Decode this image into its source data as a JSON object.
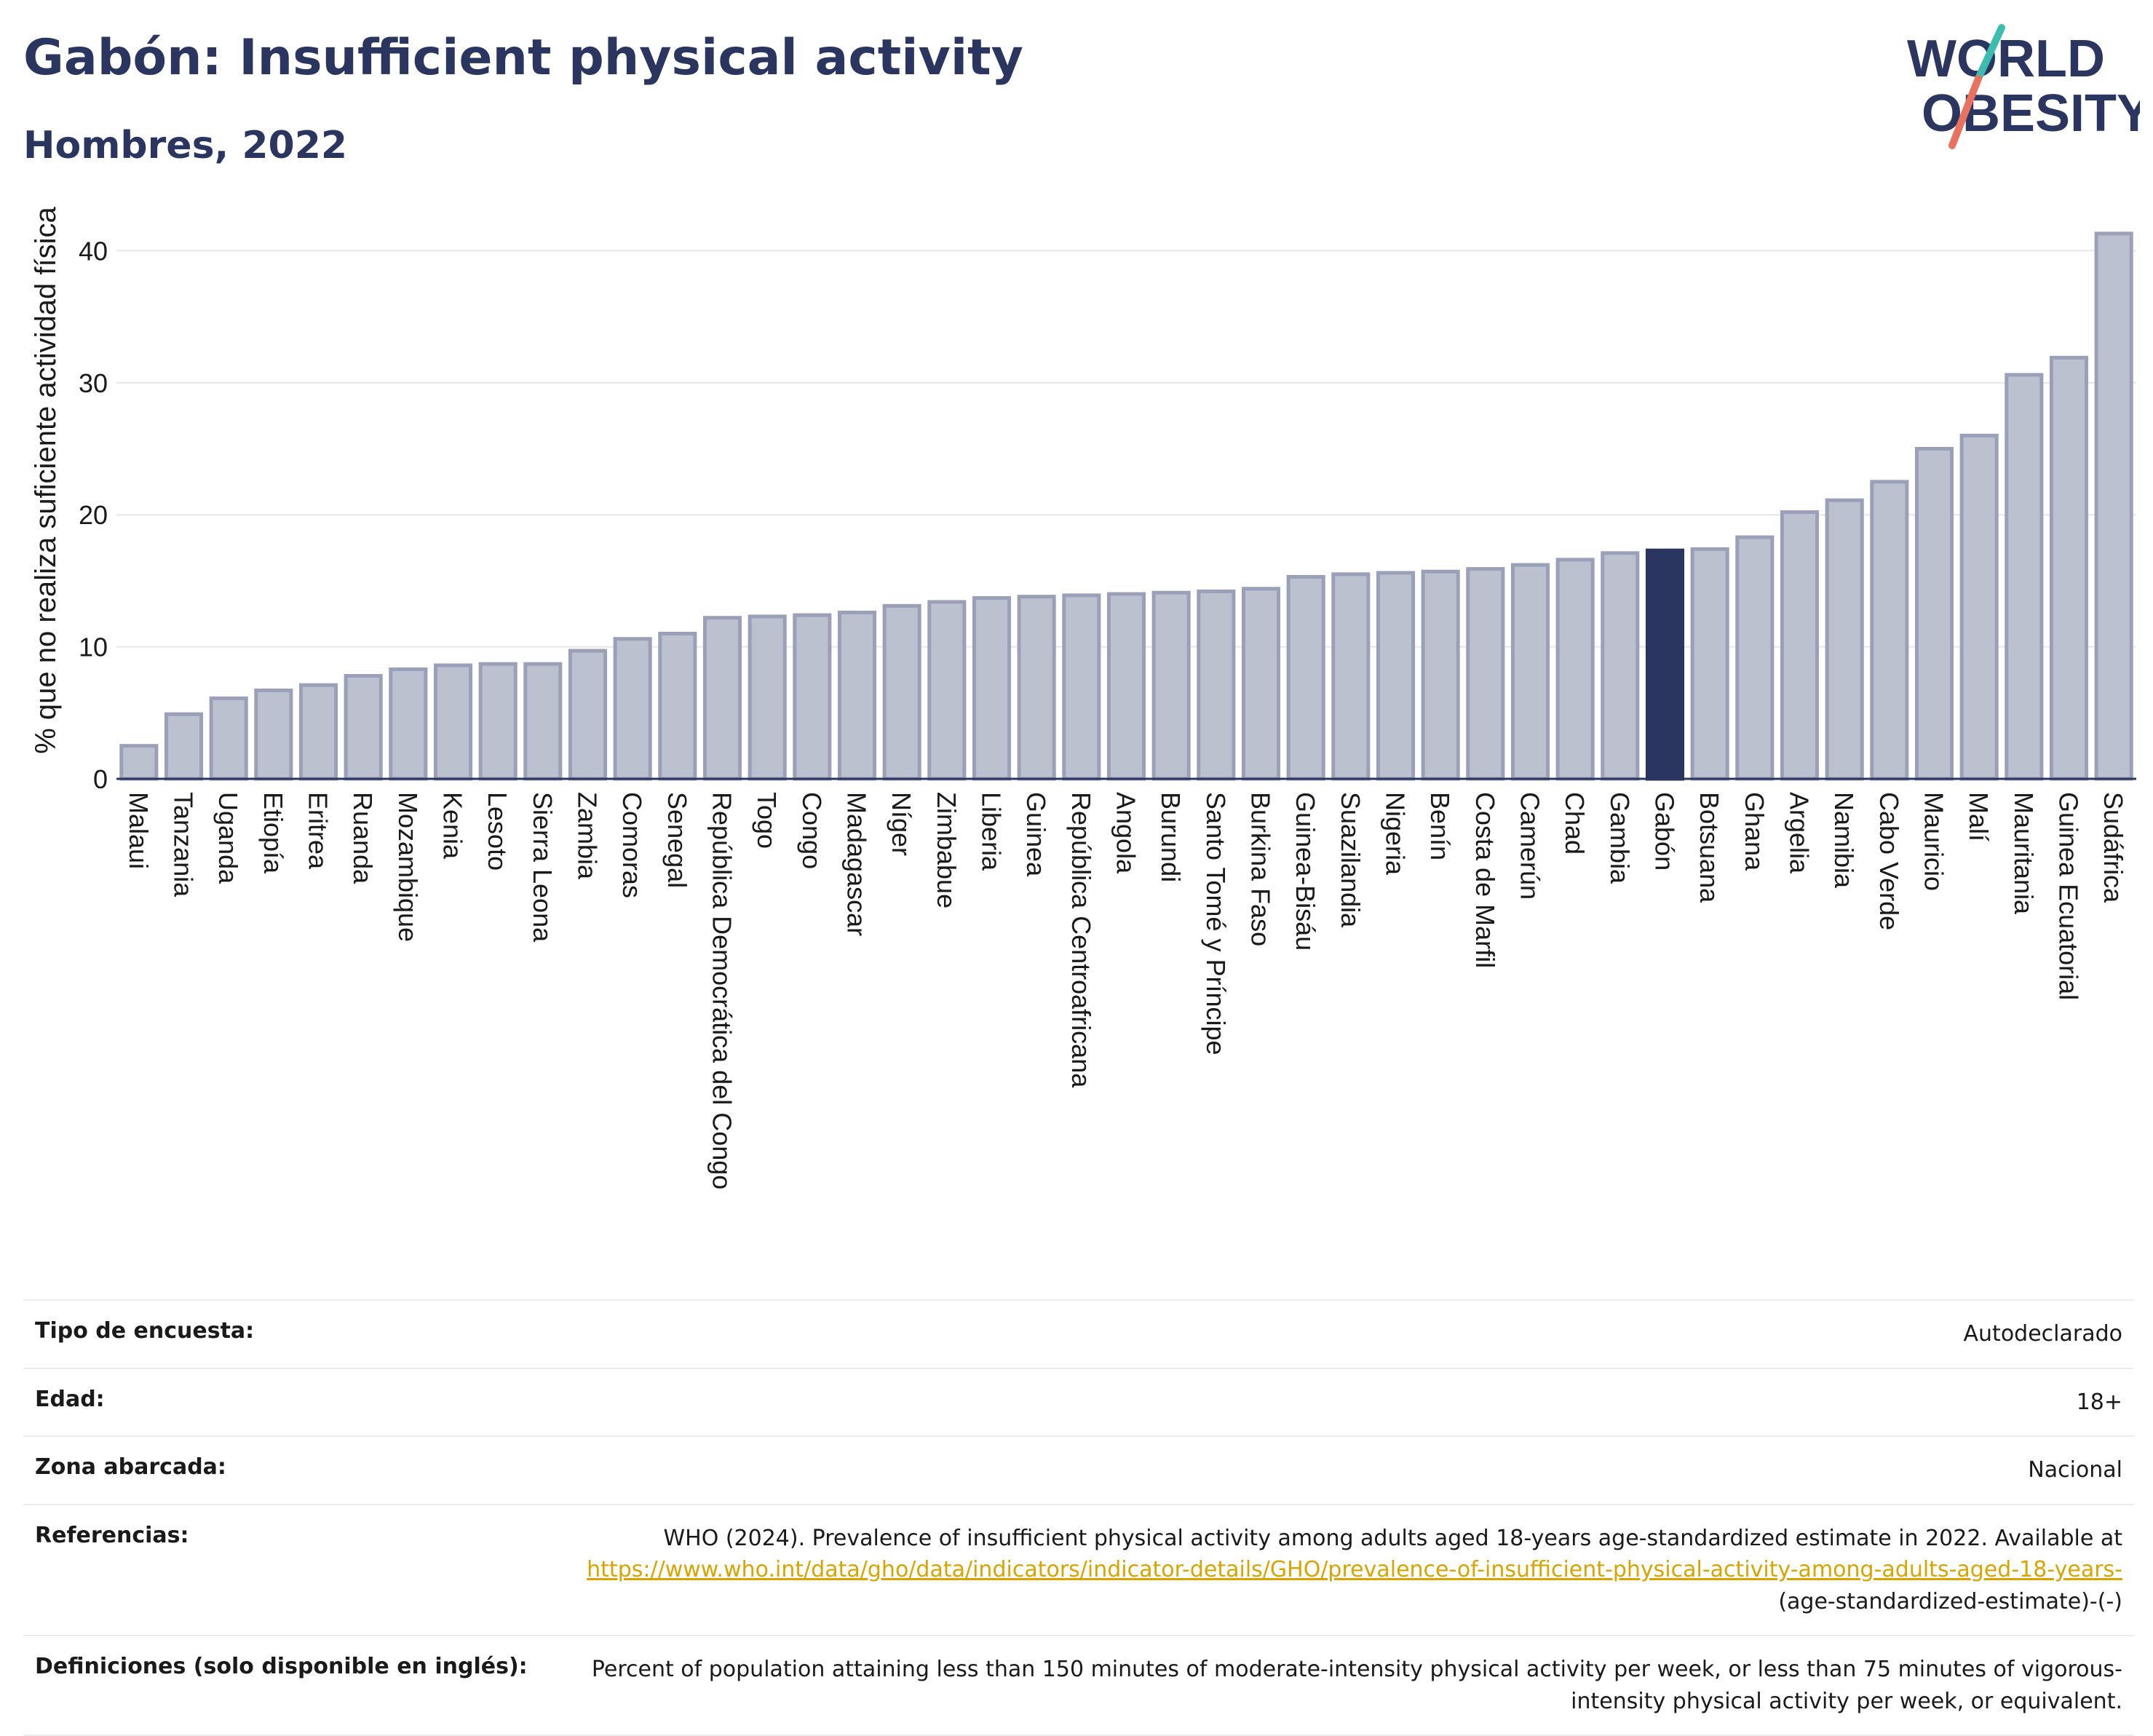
{
  "header": {
    "title": "Gabón: Insufficient physical activity",
    "subtitle": "Hombres, 2022",
    "logo_line1": "WORLD",
    "logo_line2": "OBESITY"
  },
  "colors": {
    "bar": "#bcc1d0",
    "bar_stroke": "#9aa0b8",
    "highlight": "#2b3660",
    "grid": "#e6e6e6",
    "link": "#d9a400",
    "logo_teal": "#3dbdb0",
    "logo_coral": "#e8725f"
  },
  "chart_data": {
    "type": "bar",
    "ylabel": "% que no realiza suficiente actividad física",
    "ylim": [
      0,
      43
    ],
    "yticks": [
      0,
      10,
      20,
      30,
      40
    ],
    "grid": true,
    "highlight": "Gabón",
    "categories": [
      "Malaui",
      "Tanzania",
      "Uganda",
      "Etiopía",
      "Eritrea",
      "Ruanda",
      "Mozambique",
      "Kenia",
      "Lesoto",
      "Sierra Leona",
      "Zambia",
      "Comoras",
      "Senegal",
      "República Democrática del Congo",
      "Togo",
      "Congo",
      "Madagascar",
      "Níger",
      "Zimbabue",
      "Liberia",
      "Guinea",
      "República Centroafricana",
      "Angola",
      "Burundi",
      "Santo Tomé y Príncipe",
      "Burkina Faso",
      "Guinea-Bisáu",
      "Suazilandia",
      "Nigeria",
      "Benín",
      "Costa de Marfil",
      "Camerún",
      "Chad",
      "Gambia",
      "Gabón",
      "Botsuana",
      "Ghana",
      "Argelia",
      "Namibia",
      "Cabo Verde",
      "Mauricio",
      "Malí",
      "Mauritania",
      "Guinea Ecuatorial",
      "Sudáfrica"
    ],
    "values": [
      2.5,
      4.9,
      6.1,
      6.7,
      7.1,
      7.8,
      8.3,
      8.6,
      8.7,
      8.7,
      9.7,
      10.6,
      11.0,
      12.2,
      12.3,
      12.4,
      12.6,
      13.1,
      13.4,
      13.7,
      13.8,
      13.9,
      14.0,
      14.1,
      14.2,
      14.4,
      15.3,
      15.5,
      15.6,
      15.7,
      15.9,
      16.2,
      16.6,
      17.1,
      17.3,
      17.4,
      18.3,
      20.2,
      21.1,
      22.5,
      25.0,
      26.0,
      30.6,
      31.9,
      41.3
    ]
  },
  "info": {
    "survey_label": "Tipo de encuesta:",
    "survey_value": "Autodeclarado",
    "age_label": "Edad:",
    "age_value": "18+",
    "area_label": "Zona abarcada:",
    "area_value": "Nacional",
    "ref_label": "Referencias:",
    "ref_text": "WHO (2024). Prevalence of insufficient physical activity among adults aged 18-years age-standardized estimate in 2022. Available at",
    "ref_link": "https://www.who.int/data/gho/data/indicators/indicator-details/GHO/prevalence-of-insufficient-physical-activity-among-adults-aged-18-years-",
    "ref_suffix": "(age-standardized-estimate)-(-)",
    "def_label": "Definiciones (solo disponible en inglés):",
    "def_value": "Percent of population attaining less than 150 minutes of moderate-intensity physical activity per week, or less than 75 minutes of vigorous-intensity physical activity per week, or equivalent."
  }
}
